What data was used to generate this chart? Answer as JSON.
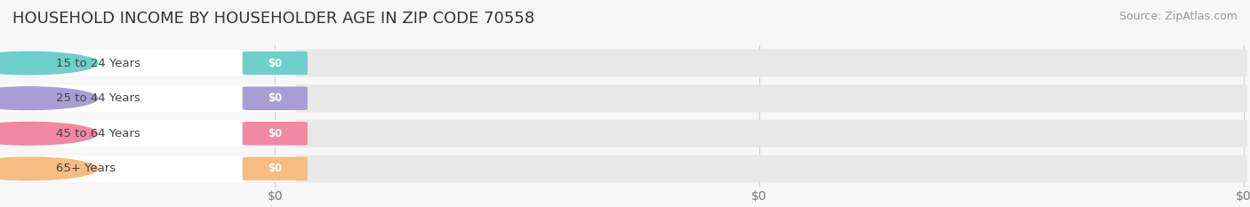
{
  "title": "HOUSEHOLD INCOME BY HOUSEHOLDER AGE IN ZIP CODE 70558",
  "source": "Source: ZipAtlas.com",
  "categories": [
    "15 to 24 Years",
    "25 to 44 Years",
    "45 to 64 Years",
    "65+ Years"
  ],
  "values": [
    0,
    0,
    0,
    0
  ],
  "bar_colors": [
    "#6ecfcc",
    "#a99ed4",
    "#f288a2",
    "#f6bc82"
  ],
  "label_text": [
    "$0",
    "$0",
    "$0",
    "$0"
  ],
  "xtick_labels": [
    "$0",
    "$0",
    "$0"
  ],
  "xtick_positions": [
    0.0,
    0.5,
    1.0
  ],
  "background_color": "#f7f7f7",
  "title_fontsize": 13,
  "source_fontsize": 9,
  "tick_fontsize": 10
}
